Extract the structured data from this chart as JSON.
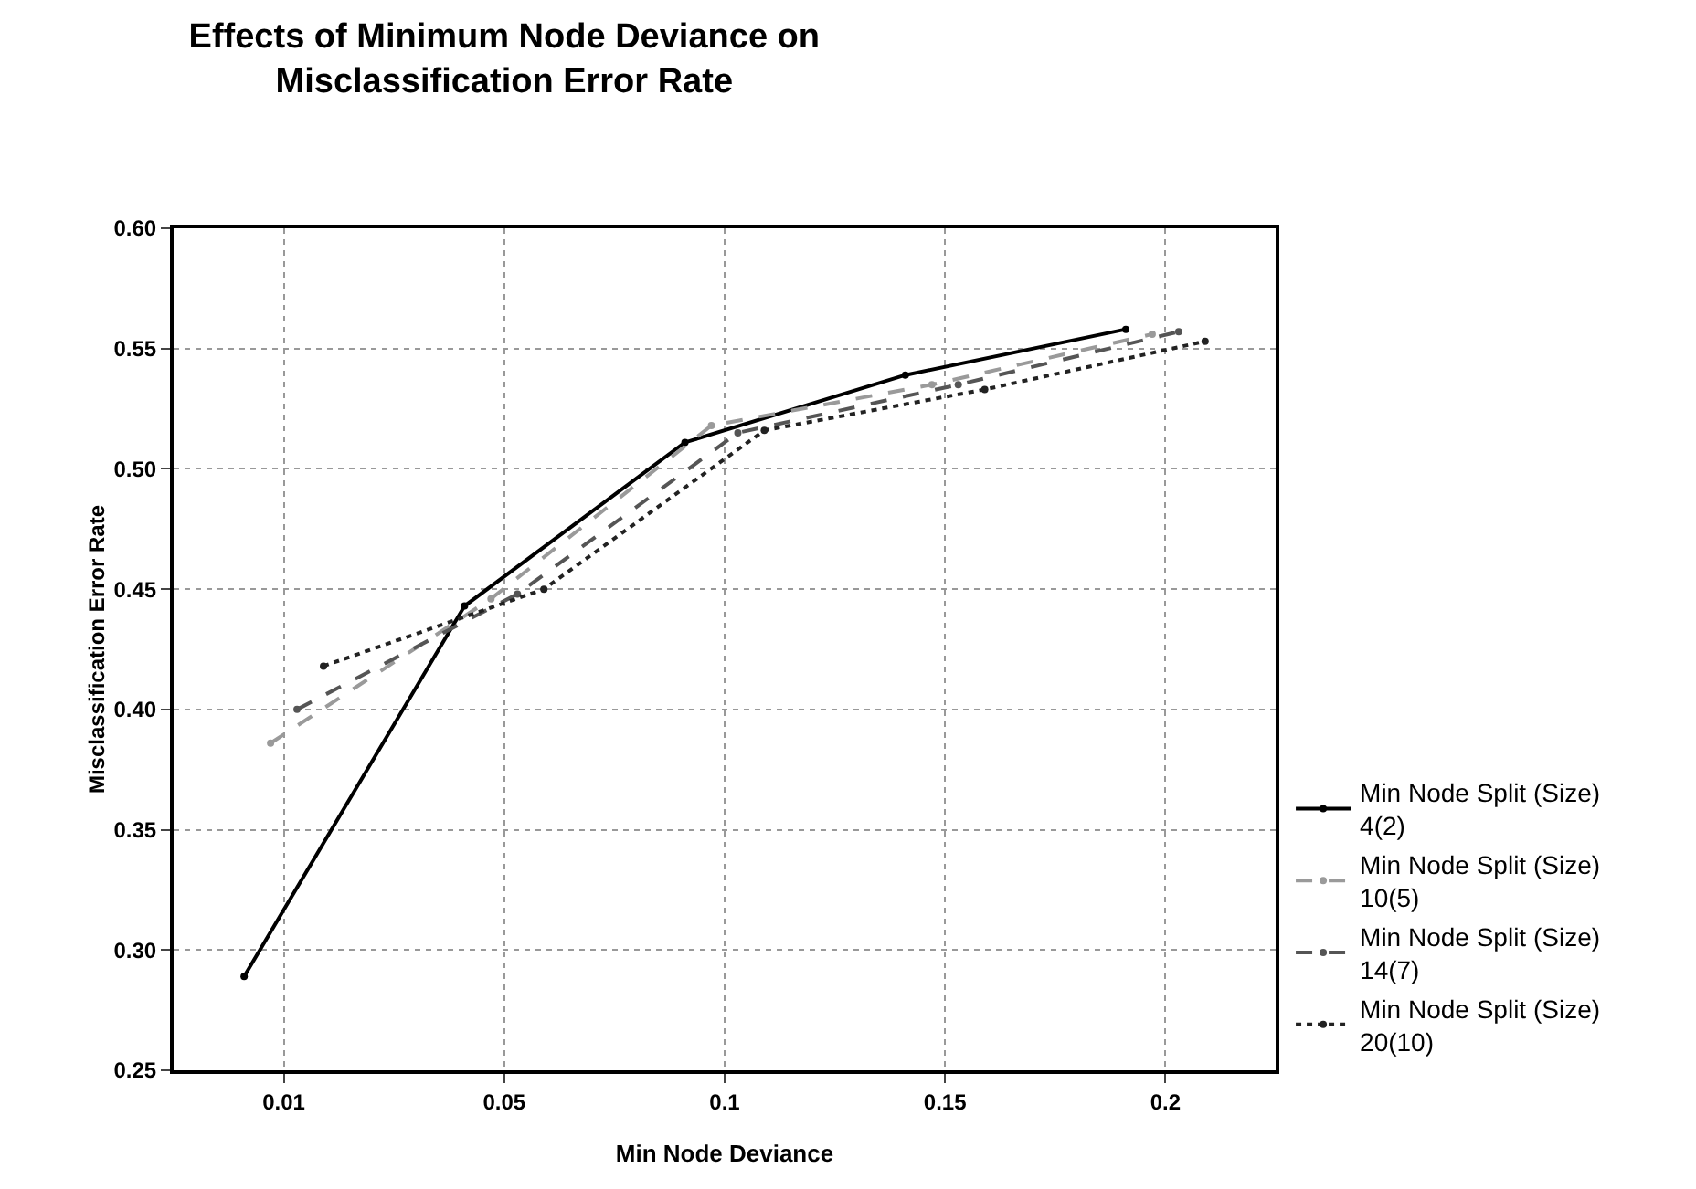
{
  "chart_data": {
    "type": "line",
    "title": "Effects of Minimum Node Deviance on\nMisclassification Error Rate",
    "xlabel": "Min Node Deviance",
    "ylabel": "Misclassification Error Rate",
    "categories": [
      "0.01",
      "0.05",
      "0.1",
      "0.15",
      "0.2"
    ],
    "series": [
      {
        "name": "Min Node Split (Size)\n4(2)",
        "color": "#000000",
        "line_style": "solid",
        "values": [
          0.289,
          0.443,
          0.511,
          0.539,
          0.558
        ]
      },
      {
        "name": "Min Node Split (Size)\n10(5)",
        "color": "#9a9a9a",
        "line_style": "dashed",
        "values": [
          0.386,
          0.446,
          0.518,
          0.535,
          0.556
        ]
      },
      {
        "name": "Min Node Split (Size)\n14(7)",
        "color": "#555555",
        "line_style": "dashed",
        "values": [
          0.4,
          0.448,
          0.515,
          0.535,
          0.557
        ]
      },
      {
        "name": "Min Node Split (Size)\n20(10)",
        "color": "#222222",
        "line_style": "dotted",
        "values": [
          0.418,
          0.45,
          0.516,
          0.533,
          0.553
        ]
      }
    ],
    "ylim": [
      0.25,
      0.6
    ],
    "yticks": [
      {
        "value": 0.25,
        "label": "0.25"
      },
      {
        "value": 0.3,
        "label": "0.30"
      },
      {
        "value": 0.35,
        "label": "0.35"
      },
      {
        "value": 0.4,
        "label": "0.40"
      },
      {
        "value": 0.45,
        "label": "0.45"
      },
      {
        "value": 0.5,
        "label": "0.50"
      },
      {
        "value": 0.55,
        "label": "0.55"
      },
      {
        "value": 0.6,
        "label": "0.60"
      }
    ],
    "grid": true,
    "legend": "bottom right",
    "marker": "circle"
  }
}
